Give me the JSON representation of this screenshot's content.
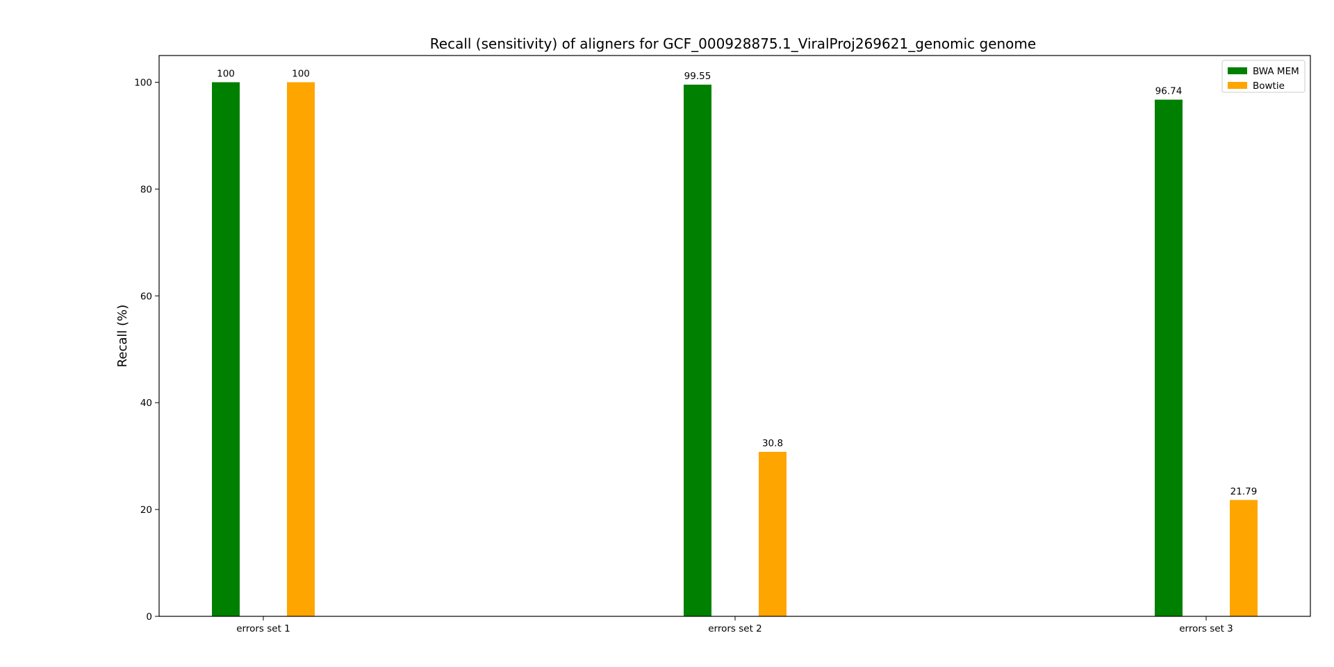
{
  "chart_data": {
    "type": "bar",
    "title": "Recall (sensitivity) of aligners for GCF_000928875.1_ViralProj269621_genomic genome",
    "xlabel": "",
    "ylabel": "Recall (%)",
    "categories": [
      "errors set 1",
      "errors set 2",
      "errors set 3"
    ],
    "ylim": [
      0,
      105
    ],
    "yticks": [
      0,
      20,
      40,
      60,
      80,
      100
    ],
    "grid": false,
    "legend_position": "top-right",
    "series": [
      {
        "name": "BWA MEM",
        "color": "#008000",
        "values": [
          100,
          99.55,
          96.74
        ],
        "labels": [
          "100",
          "99.55",
          "96.74"
        ]
      },
      {
        "name": "Bowtie",
        "color": "#FFA500",
        "values": [
          100,
          30.8,
          21.79
        ],
        "labels": [
          "100",
          "30.8",
          "21.79"
        ]
      }
    ]
  }
}
